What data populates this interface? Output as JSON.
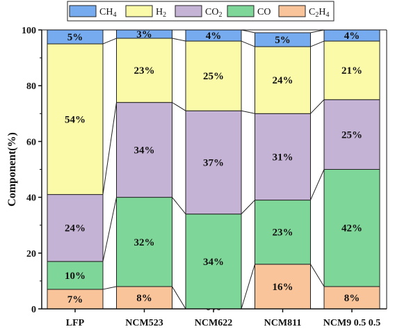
{
  "chart_data": {
    "type": "bar",
    "stacked": true,
    "categories": [
      "LFP",
      "NCM523",
      "NCM622",
      "NCM811",
      "NCM9 0.5 0.5"
    ],
    "series": [
      {
        "name": "C2H4",
        "color": "#f9c49a",
        "values": [
          7,
          8,
          0,
          16,
          8
        ],
        "labels": [
          "7%",
          "8%",
          "0%",
          "16%",
          "8%"
        ]
      },
      {
        "name": "CO",
        "color": "#7fd699",
        "values": [
          10,
          32,
          34,
          23,
          42
        ],
        "labels": [
          "10%",
          "32%",
          "34%",
          "23%",
          "42%"
        ]
      },
      {
        "name": "CO2",
        "color": "#c5b3d6",
        "values": [
          24,
          34,
          37,
          31,
          25
        ],
        "labels": [
          "24%",
          "34%",
          "37%",
          "31%",
          "25%"
        ]
      },
      {
        "name": "H2",
        "color": "#fbfaa8",
        "values": [
          54,
          23,
          25,
          24,
          21
        ],
        "labels": [
          "54%",
          "23%",
          "25%",
          "24%",
          "21%"
        ]
      },
      {
        "name": "CH4",
        "color": "#76acef",
        "values": [
          5,
          3,
          4,
          5,
          4
        ],
        "labels": [
          "5%",
          "3%",
          "4%",
          "5%",
          "4%"
        ]
      }
    ],
    "legend": {
      "position": "top",
      "items": [
        {
          "base": "CH",
          "sub": "4",
          "color": "#76acef"
        },
        {
          "base": "H",
          "sub": "2",
          "color": "#fbfaa8"
        },
        {
          "base": "CO",
          "sub": "2",
          "color": "#c5b3d6"
        },
        {
          "base": "CO",
          "sub": "",
          "color": "#7fd699"
        },
        {
          "base": "C",
          "sub": "2",
          "base2": "H",
          "sub2": "4",
          "color": "#f9c49a"
        }
      ]
    },
    "ylabel": "Component(%)",
    "xlabel": "",
    "ylim": [
      0,
      100
    ],
    "yticks": [
      0,
      20,
      40,
      60,
      80,
      100
    ],
    "connector_lines": true,
    "grid": false
  }
}
